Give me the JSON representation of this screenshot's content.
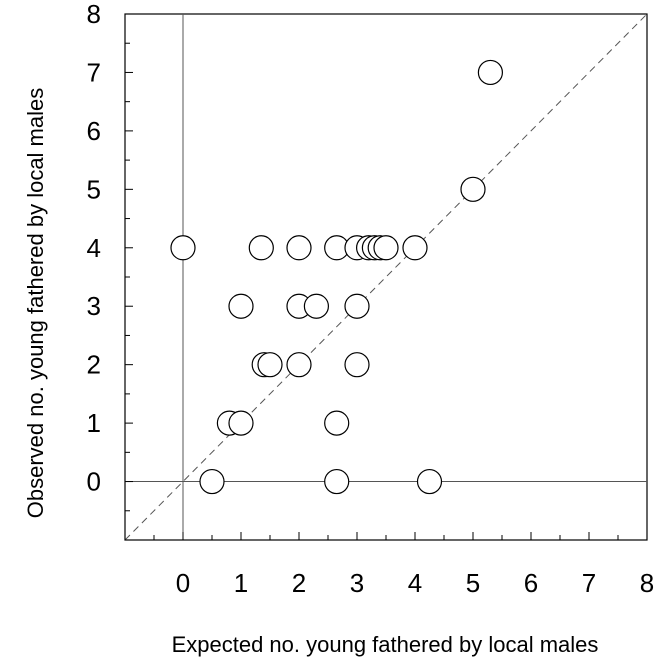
{
  "chart_data": {
    "type": "scatter",
    "title": "",
    "xlabel": "Expected no. young fathered by local males",
    "ylabel": "Observed no. young fathered by local males",
    "xlim": [
      -1,
      8
    ],
    "ylim": [
      -1,
      8
    ],
    "x_ticks": [
      "0",
      "1",
      "2",
      "3",
      "4",
      "5",
      "6",
      "7",
      "8"
    ],
    "y_ticks": [
      "0",
      "1",
      "2",
      "3",
      "4",
      "5",
      "6",
      "7",
      "8"
    ],
    "reference_lines": {
      "zero_x": 0,
      "zero_y": 0,
      "identity_line": "y = x"
    },
    "marker": "open-circle",
    "colors": {
      "marker": "#000000",
      "axes": "#000000",
      "reference": "#555555"
    },
    "series": [
      {
        "points": [
          {
            "x": 0.0,
            "y": 4
          },
          {
            "x": 0.5,
            "y": 0
          },
          {
            "x": 0.8,
            "y": 1
          },
          {
            "x": 1.0,
            "y": 1
          },
          {
            "x": 1.0,
            "y": 3
          },
          {
            "x": 1.35,
            "y": 4
          },
          {
            "x": 1.4,
            "y": 2
          },
          {
            "x": 1.5,
            "y": 2
          },
          {
            "x": 2.0,
            "y": 4
          },
          {
            "x": 2.0,
            "y": 3
          },
          {
            "x": 2.0,
            "y": 2
          },
          {
            "x": 2.3,
            "y": 3
          },
          {
            "x": 2.65,
            "y": 4
          },
          {
            "x": 2.65,
            "y": 1
          },
          {
            "x": 2.65,
            "y": 0
          },
          {
            "x": 3.0,
            "y": 4
          },
          {
            "x": 3.0,
            "y": 3
          },
          {
            "x": 3.0,
            "y": 2
          },
          {
            "x": 3.2,
            "y": 4
          },
          {
            "x": 3.3,
            "y": 4
          },
          {
            "x": 3.4,
            "y": 4
          },
          {
            "x": 3.5,
            "y": 4
          },
          {
            "x": 4.0,
            "y": 4
          },
          {
            "x": 4.25,
            "y": 0
          },
          {
            "x": 5.0,
            "y": 5
          },
          {
            "x": 5.3,
            "y": 7
          }
        ]
      }
    ]
  }
}
